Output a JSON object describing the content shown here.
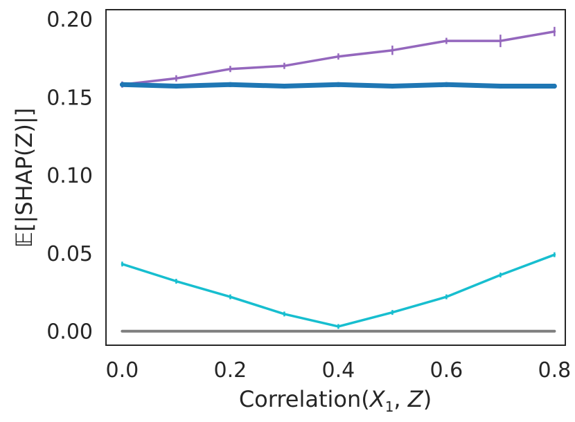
{
  "chart_data": {
    "type": "line",
    "title": "",
    "xlabel_main": "Correlation(",
    "xlabel_x": "X",
    "xlabel_sub": "1",
    "xlabel_comma": ", ",
    "xlabel_z": "Z",
    "xlabel_close": ")",
    "ylabel": "𝔼[|SHAP(Z)|]",
    "xlim": [
      -0.03,
      0.82
    ],
    "ylim": [
      -0.009,
      0.206
    ],
    "x_ticks": [
      "0.0",
      "0.2",
      "0.4",
      "0.6",
      "0.8"
    ],
    "x_tick_values": [
      0.0,
      0.2,
      0.4,
      0.6,
      0.8
    ],
    "y_ticks": [
      "0.00",
      "0.05",
      "0.10",
      "0.15",
      "0.20"
    ],
    "y_tick_values": [
      0.0,
      0.05,
      0.1,
      0.15,
      0.2
    ],
    "x": [
      0.0,
      0.1,
      0.2,
      0.3,
      0.4,
      0.5,
      0.6,
      0.7,
      0.8
    ],
    "series": [
      {
        "name": "purple",
        "color": "#9467bd",
        "width": 3.5,
        "values": [
          0.158,
          0.162,
          0.168,
          0.17,
          0.176,
          0.18,
          0.186,
          0.186,
          0.192
        ],
        "errors": [
          0.002,
          0.002,
          0.002,
          0.002,
          0.002,
          0.003,
          0.002,
          0.004,
          0.003
        ]
      },
      {
        "name": "blue",
        "color": "#1f77b4",
        "width": 7,
        "values": [
          0.158,
          0.157,
          0.158,
          0.157,
          0.158,
          0.157,
          0.158,
          0.157,
          0.157
        ],
        "errors": [
          0.001,
          0.001,
          0.001,
          0.001,
          0.001,
          0.001,
          0.001,
          0.001,
          0.001
        ]
      },
      {
        "name": "cyan",
        "color": "#17becf",
        "width": 3.5,
        "values": [
          0.043,
          0.032,
          0.022,
          0.011,
          0.003,
          0.012,
          0.022,
          0.036,
          0.049
        ],
        "errors": [
          0.001,
          0.001,
          0.001,
          0.001,
          0.001,
          0.001,
          0.001,
          0.001,
          0.001
        ]
      },
      {
        "name": "gray",
        "color": "#7f7f7f",
        "width": 4,
        "values": [
          0.0,
          0.0,
          0.0,
          0.0,
          0.0,
          0.0,
          0.0,
          0.0,
          0.0
        ],
        "errors": [
          0,
          0,
          0,
          0,
          0,
          0,
          0,
          0,
          0
        ]
      }
    ],
    "grid": false,
    "frame_color": "#262626"
  }
}
